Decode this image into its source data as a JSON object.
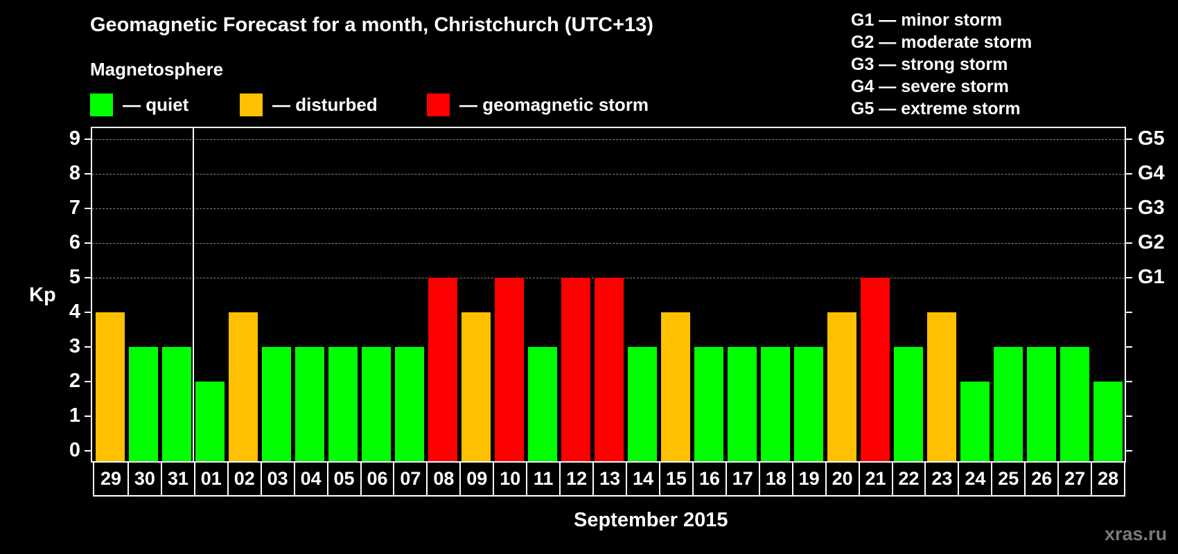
{
  "title": "Geomagnetic Forecast for a month, Christchurch (UTC+13)",
  "section_label": "Magnetosphere",
  "legend": [
    {
      "label": "— quiet",
      "color": "#00ff00",
      "x": 130
    },
    {
      "label": "— disturbed",
      "color": "#ffc000",
      "x": 346
    },
    {
      "label": "— geomagnetic storm",
      "color": "#ff0000",
      "x": 616
    }
  ],
  "g_scale_legend": [
    "G1 — minor storm",
    "G2 — moderate storm",
    "G3 — strong storm",
    "G4 — severe storm",
    "G5 — extreme storm"
  ],
  "y_axis_label": "Kp",
  "x_axis_label": "September 2015",
  "watermark": "xras.ru",
  "colors": {
    "quiet": "#00ff00",
    "disturbed": "#ffc000",
    "storm": "#ff0000",
    "grid": "#888888",
    "background": "#000000"
  },
  "chart_data": {
    "type": "bar",
    "title": "Geomagnetic Forecast for a month, Christchurch (UTC+13)",
    "xlabel": "September 2015",
    "ylabel": "Kp",
    "ylim": [
      0,
      9
    ],
    "yticks": [
      0,
      1,
      2,
      3,
      4,
      5,
      6,
      7,
      8,
      9
    ],
    "right_axis_ticks": [
      {
        "kp": 5,
        "label": "G1"
      },
      {
        "kp": 6,
        "label": "G2"
      },
      {
        "kp": 7,
        "label": "G3"
      },
      {
        "kp": 8,
        "label": "G4"
      },
      {
        "kp": 9,
        "label": "G5"
      }
    ],
    "grid": "dashed horizontal at Kp 5-9",
    "categories": [
      "29",
      "30",
      "31",
      "01",
      "02",
      "03",
      "04",
      "05",
      "06",
      "07",
      "08",
      "09",
      "10",
      "11",
      "12",
      "13",
      "14",
      "15",
      "16",
      "17",
      "18",
      "19",
      "20",
      "21",
      "22",
      "23",
      "24",
      "25",
      "26",
      "27",
      "28"
    ],
    "values": [
      4,
      3,
      3,
      2,
      4,
      3,
      3,
      3,
      3,
      3,
      5,
      4,
      5,
      3,
      5,
      5,
      3,
      4,
      3,
      3,
      3,
      3,
      4,
      5,
      3,
      4,
      2,
      3,
      3,
      3,
      2
    ],
    "status": [
      "disturbed",
      "quiet",
      "quiet",
      "quiet",
      "disturbed",
      "quiet",
      "quiet",
      "quiet",
      "quiet",
      "quiet",
      "storm",
      "disturbed",
      "storm",
      "quiet",
      "storm",
      "storm",
      "quiet",
      "disturbed",
      "quiet",
      "quiet",
      "quiet",
      "quiet",
      "disturbed",
      "storm",
      "quiet",
      "disturbed",
      "quiet",
      "quiet",
      "quiet",
      "quiet",
      "quiet"
    ],
    "month_boundary_after": "31",
    "legend": [
      "quiet",
      "disturbed",
      "geomagnetic storm"
    ]
  }
}
